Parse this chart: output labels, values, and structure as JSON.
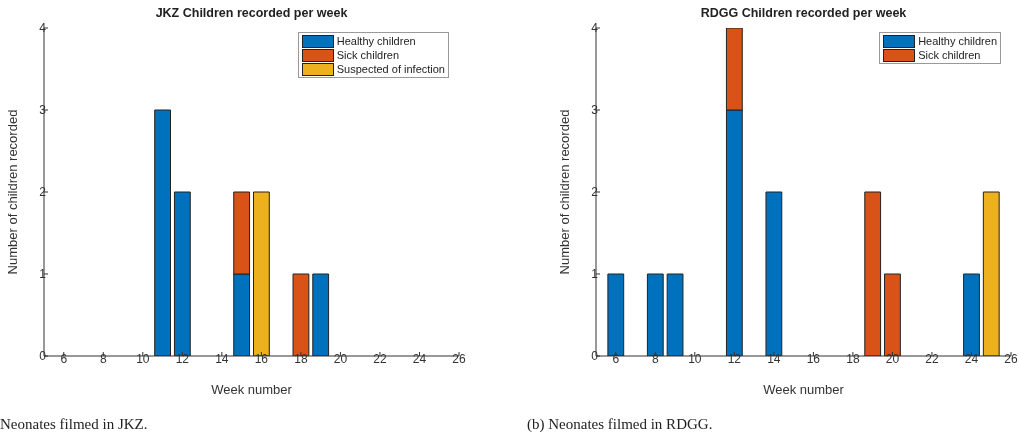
{
  "chart_data": [
    {
      "type": "bar",
      "stacked": true,
      "title": "JKZ Children recorded per week",
      "xlabel": "Week number",
      "ylabel": "Number of children recorded",
      "x": [
        11,
        12,
        15,
        16,
        18,
        19
      ],
      "series": [
        {
          "name": "Healthy children",
          "color": "#0072bd",
          "values": [
            3,
            2,
            1,
            null,
            null,
            1
          ]
        },
        {
          "name": "Sick children",
          "color": "#d95319",
          "values": [
            null,
            null,
            1,
            null,
            1,
            null
          ]
        },
        {
          "name": "Suspected of infection",
          "color": "#edb120",
          "values": [
            null,
            null,
            null,
            2,
            null,
            null
          ]
        }
      ],
      "xlim": [
        5,
        26
      ],
      "xticks": [
        6,
        8,
        10,
        12,
        14,
        16,
        18,
        20,
        22,
        24,
        26
      ],
      "ylim": [
        0,
        4
      ],
      "yticks": [
        0,
        1,
        2,
        3,
        4
      ],
      "grid": false,
      "legend": "top right",
      "annotations": [
        "Neonates filmed in JKZ."
      ]
    },
    {
      "type": "bar",
      "stacked": true,
      "title": "RDGG Children recorded per week",
      "xlabel": "Week number",
      "ylabel": "Number of children recorded",
      "x": [
        6,
        8,
        9,
        12,
        14,
        19,
        20,
        24,
        25
      ],
      "series": [
        {
          "name": "Healthy children",
          "color": "#0072bd",
          "values": [
            1,
            1,
            1,
            3,
            2,
            null,
            null,
            1,
            null
          ]
        },
        {
          "name": "Sick children",
          "color": "#d95319",
          "values": [
            null,
            null,
            null,
            1,
            null,
            2,
            1,
            null,
            null
          ]
        },
        {
          "color": "#edb120",
          "values": [
            null,
            null,
            null,
            null,
            null,
            null,
            null,
            null,
            2
          ]
        }
      ],
      "xlim": [
        5,
        26
      ],
      "xticks": [
        6,
        8,
        10,
        12,
        14,
        16,
        18,
        20,
        22,
        24,
        26
      ],
      "ylim": [
        0,
        4
      ],
      "yticks": [
        0,
        1,
        2,
        3,
        4
      ],
      "grid": false,
      "legend": "top right",
      "annotations": [
        "(b) Neonates filmed in RDGG."
      ]
    }
  ]
}
